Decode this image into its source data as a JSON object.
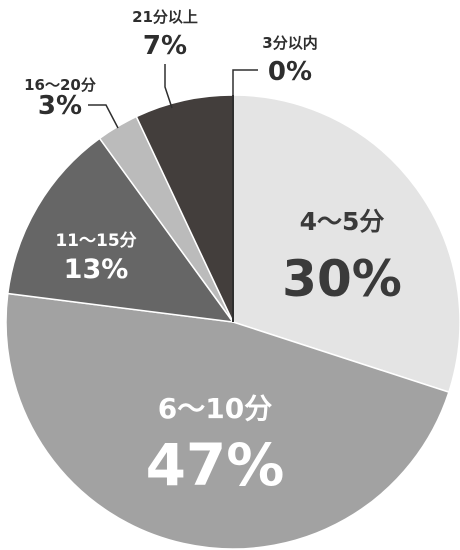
{
  "chart_data": {
    "type": "pie",
    "start": "12 o'clock",
    "direction": "clockwise",
    "slices": [
      {
        "label": "4～5分",
        "value": 30,
        "value_label": "30%",
        "color": "#e4e4e4",
        "text_color": "#3a3a3a"
      },
      {
        "label": "6～10分",
        "value": 47,
        "value_label": "47%",
        "color": "#a2a2a2",
        "text_color": "#ffffff"
      },
      {
        "label": "11～15分",
        "value": 13,
        "value_label": "13%",
        "color": "#666666",
        "text_color": "#ffffff"
      },
      {
        "label": "16～20分",
        "value": 3,
        "value_label": "3%",
        "color": "#bbbbbb",
        "text_color": "#2e2e2e"
      },
      {
        "label": "21分以上",
        "value": 7,
        "value_label": "7%",
        "color": "#433e3c",
        "text_color": "#2e2e2e"
      },
      {
        "label": "3分以内",
        "value": 0,
        "value_label": "0%",
        "color": "#2e2e2e",
        "text_color": "#2e2e2e"
      }
    ],
    "edge_color": "#ffffff",
    "leader_color": "#2e2e2e"
  }
}
